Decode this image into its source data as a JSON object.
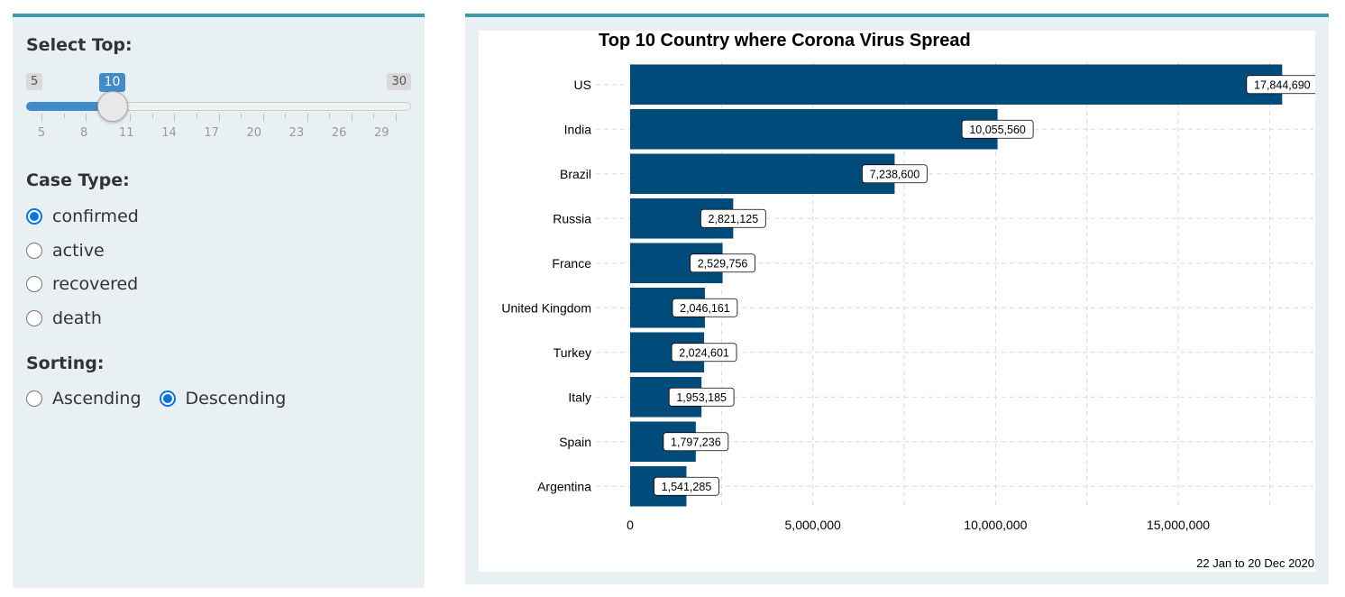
{
  "sidebar": {
    "select_top": {
      "label": "Select Top:",
      "min": 5,
      "max": 30,
      "value": 10,
      "value_label": "10",
      "min_label": "5",
      "max_label": "30",
      "grid_labels": [
        "5",
        "8",
        "11",
        "14",
        "17",
        "20",
        "23",
        "26",
        "29"
      ]
    },
    "case_type": {
      "label": "Case Type:",
      "options": [
        "confirmed",
        "active",
        "recovered",
        "death"
      ],
      "selected": "confirmed"
    },
    "sorting": {
      "label": "Sorting:",
      "options": [
        "Ascending",
        "Descending"
      ],
      "selected": "Descending"
    }
  },
  "colors": {
    "bar": "#004b7a",
    "accent": "#3e9aab",
    "radio": "#0b74e0",
    "slider": "#428bca"
  },
  "chart_data": {
    "type": "bar",
    "orientation": "horizontal",
    "title": "Top 10 Country where Corona Virus Spread",
    "caption": "22 Jan to 20 Dec 2020",
    "categories": [
      "US",
      "India",
      "Brazil",
      "Russia",
      "France",
      "United Kingdom",
      "Turkey",
      "Italy",
      "Spain",
      "Argentina"
    ],
    "values": [
      17844690,
      10055560,
      7238600,
      2821125,
      2529756,
      2046161,
      2024601,
      1953185,
      1797236,
      1541285
    ],
    "value_labels": [
      "17,844,690",
      "10,055,560",
      "7,238,600",
      "2,821,125",
      "2,529,756",
      "2,046,161",
      "2,024,601",
      "1,953,185",
      "1,797,236",
      "1,541,285"
    ],
    "x_ticks": [
      0,
      5000000,
      10000000,
      15000000
    ],
    "x_tick_labels": [
      "0",
      "5,000,000",
      "10,000,000",
      "15,000,000"
    ],
    "xlim": [
      0,
      18700000
    ],
    "grid": true,
    "legend": "none"
  }
}
